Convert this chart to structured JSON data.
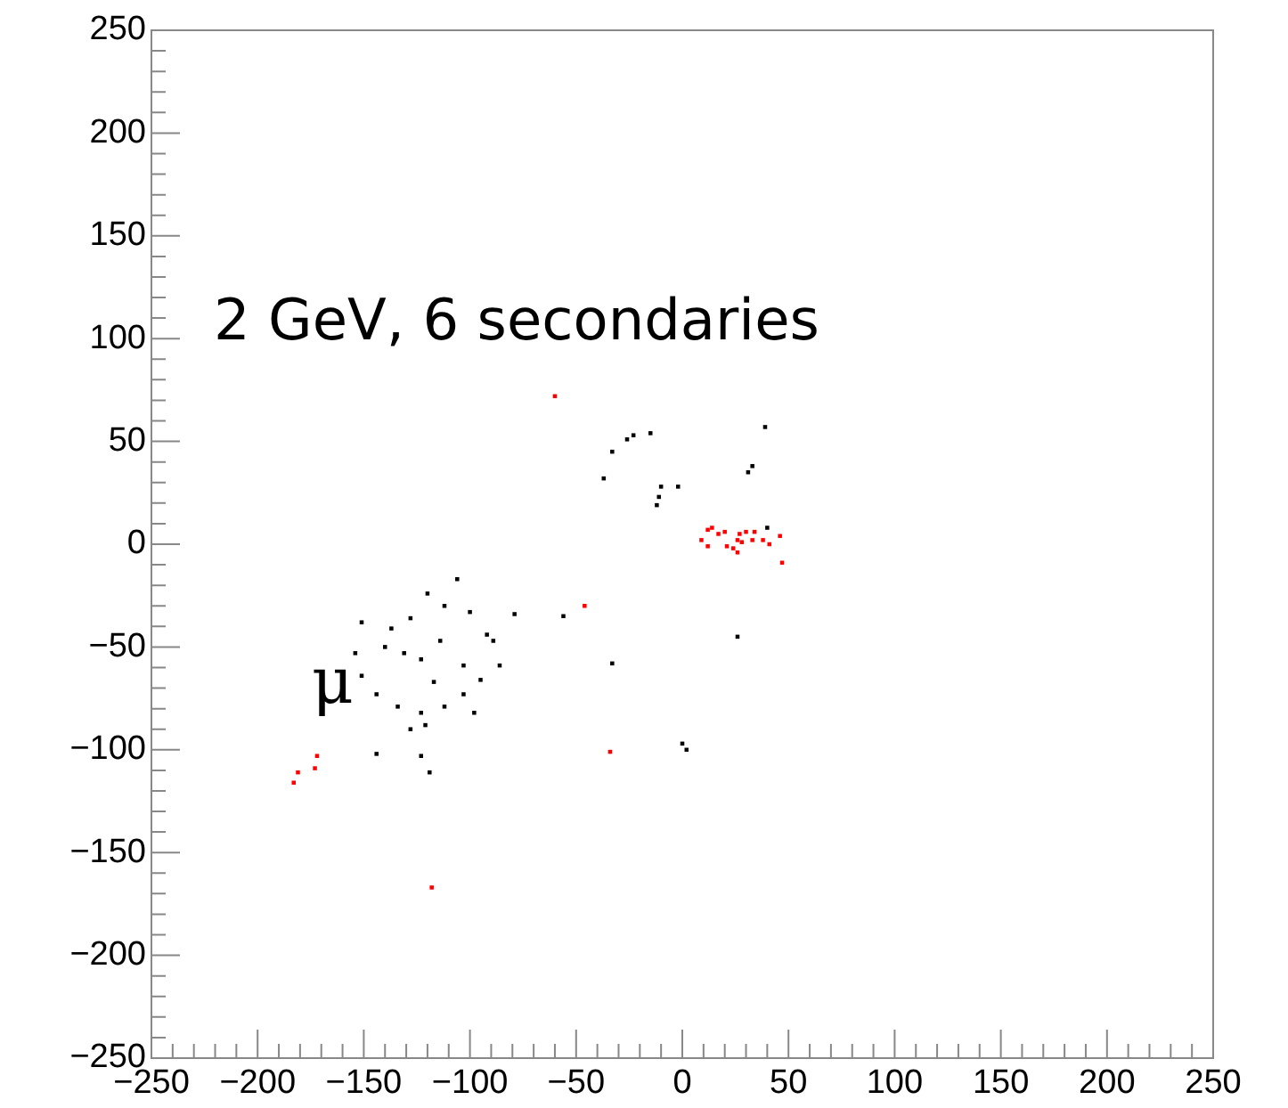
{
  "chart_data": {
    "type": "scatter",
    "marker": "square",
    "grid": false,
    "legend": false,
    "xlim": [
      -250,
      250
    ],
    "ylim": [
      -250,
      250
    ],
    "xticks": [
      -250,
      {
        "value": -240,
        "label": null
      },
      {
        "value": -230,
        "label": null
      },
      {
        "value": -220,
        "label": null
      },
      {
        "value": -210,
        "label": null
      },
      -200,
      {
        "value": -190,
        "label": null
      },
      {
        "value": -180,
        "label": null
      },
      {
        "value": -170,
        "label": null
      },
      {
        "value": -160,
        "label": null
      },
      -150,
      {
        "value": -140,
        "label": null
      },
      {
        "value": -130,
        "label": null
      },
      {
        "value": -120,
        "label": null
      },
      {
        "value": -110,
        "label": null
      },
      -100,
      {
        "value": -90,
        "label": null
      },
      {
        "value": -80,
        "label": null
      },
      {
        "value": -70,
        "label": null
      },
      {
        "value": -60,
        "label": null
      },
      -50,
      {
        "value": -40,
        "label": null
      },
      {
        "value": -30,
        "label": null
      },
      {
        "value": -20,
        "label": null
      },
      {
        "value": -10,
        "label": null
      },
      0,
      {
        "value": 10,
        "label": null
      },
      {
        "value": 20,
        "label": null
      },
      {
        "value": 30,
        "label": null
      },
      {
        "value": 40,
        "label": null
      },
      50,
      {
        "value": 60,
        "label": null
      },
      {
        "value": 70,
        "label": null
      },
      {
        "value": 80,
        "label": null
      },
      {
        "value": 90,
        "label": null
      },
      100,
      {
        "value": 110,
        "label": null
      },
      {
        "value": 120,
        "label": null
      },
      {
        "value": 130,
        "label": null
      },
      {
        "value": 140,
        "label": null
      },
      150,
      {
        "value": 160,
        "label": null
      },
      {
        "value": 170,
        "label": null
      },
      {
        "value": 180,
        "label": null
      },
      {
        "value": 190,
        "label": null
      },
      200,
      {
        "value": 210,
        "label": null
      },
      {
        "value": 220,
        "label": null
      },
      {
        "value": 230,
        "label": null
      },
      {
        "value": 240,
        "label": null
      },
      250
    ],
    "yticks": [
      -250,
      {
        "value": -240,
        "label": null
      },
      {
        "value": -230,
        "label": null
      },
      {
        "value": -220,
        "label": null
      },
      {
        "value": -210,
        "label": null
      },
      -200,
      {
        "value": -190,
        "label": null
      },
      {
        "value": -180,
        "label": null
      },
      {
        "value": -170,
        "label": null
      },
      {
        "value": -160,
        "label": null
      },
      -150,
      {
        "value": -140,
        "label": null
      },
      {
        "value": -130,
        "label": null
      },
      {
        "value": -120,
        "label": null
      },
      {
        "value": -110,
        "label": null
      },
      -100,
      {
        "value": -90,
        "label": null
      },
      {
        "value": -80,
        "label": null
      },
      {
        "value": -70,
        "label": null
      },
      {
        "value": -60,
        "label": null
      },
      -50,
      {
        "value": -40,
        "label": null
      },
      {
        "value": -30,
        "label": null
      },
      {
        "value": -20,
        "label": null
      },
      {
        "value": -10,
        "label": null
      },
      0,
      {
        "value": 10,
        "label": null
      },
      {
        "value": 20,
        "label": null
      },
      {
        "value": 30,
        "label": null
      },
      {
        "value": 40,
        "label": null
      },
      50,
      {
        "value": 60,
        "label": null
      },
      {
        "value": 70,
        "label": null
      },
      {
        "value": 80,
        "label": null
      },
      {
        "value": 90,
        "label": null
      },
      100,
      {
        "value": 110,
        "label": null
      },
      {
        "value": 120,
        "label": null
      },
      {
        "value": 130,
        "label": null
      },
      {
        "value": 140,
        "label": null
      },
      150,
      {
        "value": 160,
        "label": null
      },
      {
        "value": 170,
        "label": null
      },
      {
        "value": 180,
        "label": null
      },
      {
        "value": 190,
        "label": null
      },
      200,
      {
        "value": 210,
        "label": null
      },
      {
        "value": 220,
        "label": null
      },
      {
        "value": 230,
        "label": null
      },
      {
        "value": 240,
        "label": null
      },
      250
    ],
    "annotations": [
      "2 GeV, 6 secondaries",
      "μ"
    ],
    "series": [
      {
        "color": "#000000",
        "x": [
          -151,
          -154,
          -151,
          -144,
          -134,
          -123,
          -112,
          -103,
          -95,
          -86,
          -106,
          -120,
          -112,
          -128,
          -137,
          -114,
          -123,
          -100,
          -89,
          -79,
          -117,
          -103,
          -140,
          -121,
          -123,
          -128,
          -144,
          -119,
          -98,
          -92,
          -131,
          -26,
          -23,
          -15,
          -33,
          -37,
          -10,
          -2,
          -11,
          -12,
          39,
          31,
          33,
          40,
          -56,
          26,
          -33,
          0,
          2
        ],
        "values": [
          -38,
          -53,
          -64,
          -73,
          -79,
          -82,
          -79,
          -73,
          -66,
          -59,
          -17,
          -24,
          -30,
          -36,
          -41,
          -47,
          -56,
          -33,
          -47,
          -34,
          -67,
          -59,
          -50,
          -88,
          -103,
          -90,
          -102,
          -111,
          -82,
          -44,
          -53,
          51,
          53,
          54,
          45,
          32,
          28,
          28,
          23,
          19,
          57,
          35,
          38,
          8,
          -35,
          -45,
          -58,
          -97,
          -100
        ]
      },
      {
        "color": "#ff0000",
        "x": [
          -60,
          9,
          12,
          14,
          17,
          20,
          21,
          24,
          26,
          27,
          28,
          30,
          26,
          33,
          34,
          38,
          41,
          46,
          47,
          12,
          -46,
          -181,
          -173,
          -172,
          -183,
          -118,
          -34
        ],
        "values": [
          72,
          2,
          -1,
          8,
          5,
          6,
          -1,
          -2,
          2,
          5,
          1,
          6,
          -4,
          2,
          6,
          2,
          0,
          4,
          -9,
          7,
          -30,
          -111,
          -109,
          -103,
          -116,
          -167,
          -101
        ]
      }
    ]
  }
}
